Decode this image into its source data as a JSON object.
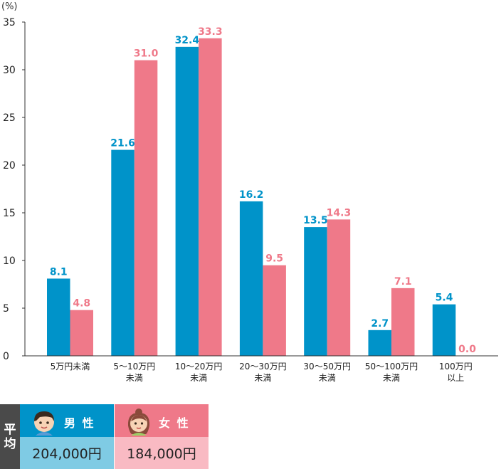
{
  "chart_data": {
    "type": "bar",
    "unit_label": "(%)",
    "categories": [
      [
        "5万円未満"
      ],
      [
        "5～10万円",
        "未満"
      ],
      [
        "10～20万円",
        "未満"
      ],
      [
        "20～30万円",
        "未満"
      ],
      [
        "30～50万円",
        "未満"
      ],
      [
        "50～100万円",
        "未満"
      ],
      [
        "100万円",
        "以上"
      ]
    ],
    "series": [
      {
        "name": "男性",
        "color": "#0093c9",
        "values": [
          8.1,
          21.6,
          32.4,
          16.2,
          13.5,
          2.7,
          5.4
        ]
      },
      {
        "name": "女性",
        "color": "#ef7989",
        "values": [
          4.8,
          31.0,
          33.3,
          9.5,
          14.3,
          7.1,
          0.0
        ]
      }
    ],
    "ylim": [
      0,
      35
    ],
    "yticks": [
      0,
      5,
      10,
      15,
      20,
      25,
      30,
      35
    ],
    "grid": false,
    "legend": "below"
  },
  "average": {
    "label": "平均",
    "label_chars": [
      "平",
      "均"
    ],
    "male": {
      "label": "男性",
      "label_display": "男 性",
      "value": "204,000円",
      "icon": "boy-face-icon"
    },
    "female": {
      "label": "女性",
      "label_display": "女 性",
      "value": "184,000円",
      "icon": "girl-face-icon"
    }
  }
}
